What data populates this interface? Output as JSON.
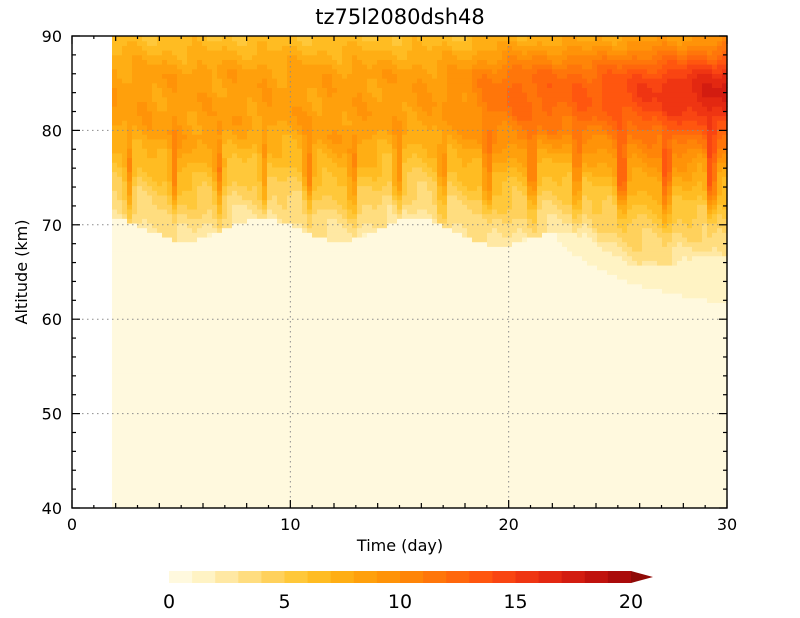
{
  "chart_data": {
    "type": "heatmap",
    "title": "tz75l2080dsh48",
    "xlabel": "Time (day)",
    "ylabel": "Altitude (km)",
    "xlim": [
      0,
      30
    ],
    "ylim": [
      40,
      90
    ],
    "xticks": [
      0,
      10,
      20,
      30
    ],
    "yticks": [
      40,
      50,
      60,
      70,
      80,
      90
    ],
    "grid": "dotted",
    "data_start_day": 1.8,
    "colorbar": {
      "placement": "bottom",
      "ticks": [
        0,
        5,
        10,
        15,
        20
      ],
      "extend": "max",
      "colors": [
        "#fff9de",
        "#fff3c4",
        "#ffe8a3",
        "#ffdd7f",
        "#ffd15c",
        "#ffc83a",
        "#ffbc22",
        "#ffae14",
        "#ffa00c",
        "#ff9308",
        "#ff8508",
        "#ff760a",
        "#ff670c",
        "#ff560f",
        "#f94512",
        "#ef3512",
        "#e32811",
        "#d31c10",
        "#c0120d",
        "#aa0b0a",
        "#8f0a07"
      ]
    },
    "field_description_points": {
      "altitudes": [
        40,
        50,
        60,
        65,
        70,
        72,
        75,
        80,
        85,
        90
      ],
      "early_period_values_day5": [
        0.5,
        0.5,
        0.5,
        0.5,
        1,
        3,
        7,
        8,
        8,
        6
      ],
      "late_period_values_day29": [
        0.5,
        0.5,
        1,
        2,
        5,
        8,
        11,
        14,
        19,
        12
      ]
    }
  }
}
